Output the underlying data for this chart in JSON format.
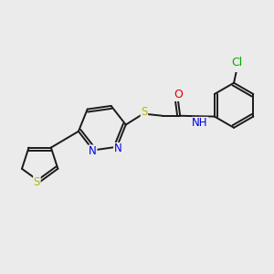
{
  "bg_color": "#ebebeb",
  "bond_color": "#1a1a1a",
  "bond_width": 1.4,
  "atom_colors": {
    "S": "#b8b800",
    "N": "#0000e0",
    "O": "#e00000",
    "Cl": "#00aa00",
    "C": "#1a1a1a"
  },
  "font_size": 8.5,
  "fig_width": 3.0,
  "fig_height": 3.0
}
